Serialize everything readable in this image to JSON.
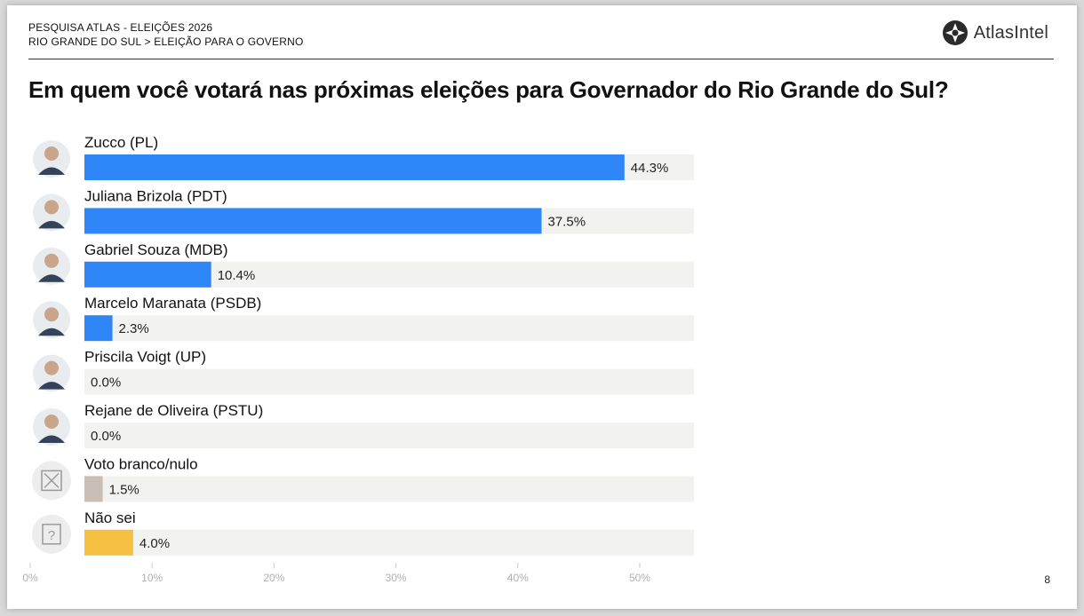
{
  "header": {
    "line1": "PESQUISA ATLAS - ELEIÇÕES 2026",
    "line2": "RIO GRANDE DO SUL > ELEIÇÃO PARA O GOVERNO"
  },
  "logo": {
    "text": "AtlasIntel",
    "icon": "atlasintel-logo-icon"
  },
  "question": "Em quem você votará nas próximas eleições para Governador do Rio Grande do Sul?",
  "page_number": "8",
  "colors": {
    "candidate": "#2F86F6",
    "blank_null": "#C9BEB6",
    "dont_know": "#F6C142",
    "track": "#F2F2F0"
  },
  "chart_data": {
    "type": "bar",
    "orientation": "horizontal",
    "categories": [
      "Zucco (PL)",
      "Juliana Brizola (PDT)",
      "Gabriel Souza (MDB)",
      "Marcelo Maranata (PSDB)",
      "Priscila Voigt (UP)",
      "Rejane de Oliveira (PSTU)",
      "Voto branco/nulo",
      "Não sei"
    ],
    "values": [
      44.3,
      37.5,
      10.4,
      2.3,
      0.0,
      0.0,
      1.5,
      4.0
    ],
    "value_labels": [
      "44.3%",
      "37.5%",
      "10.4%",
      "2.3%",
      "0.0%",
      "0.0%",
      "1.5%",
      "4.0%"
    ],
    "bar_colors": [
      "#2F86F6",
      "#2F86F6",
      "#2F86F6",
      "#2F86F6",
      "#2F86F6",
      "#2F86F6",
      "#C9BEB6",
      "#F6C142"
    ],
    "row_icons": [
      "candidate-photo",
      "candidate-photo",
      "candidate-photo",
      "candidate-photo",
      "candidate-photo",
      "candidate-photo",
      "blank-ballot-icon",
      "question-mark-icon"
    ],
    "x_ticks": [
      0,
      10,
      20,
      30,
      40,
      50
    ],
    "x_tick_labels": [
      "0%",
      "10%",
      "20%",
      "30%",
      "40%",
      "50%"
    ],
    "xlim": [
      0,
      50
    ],
    "grid": false
  }
}
